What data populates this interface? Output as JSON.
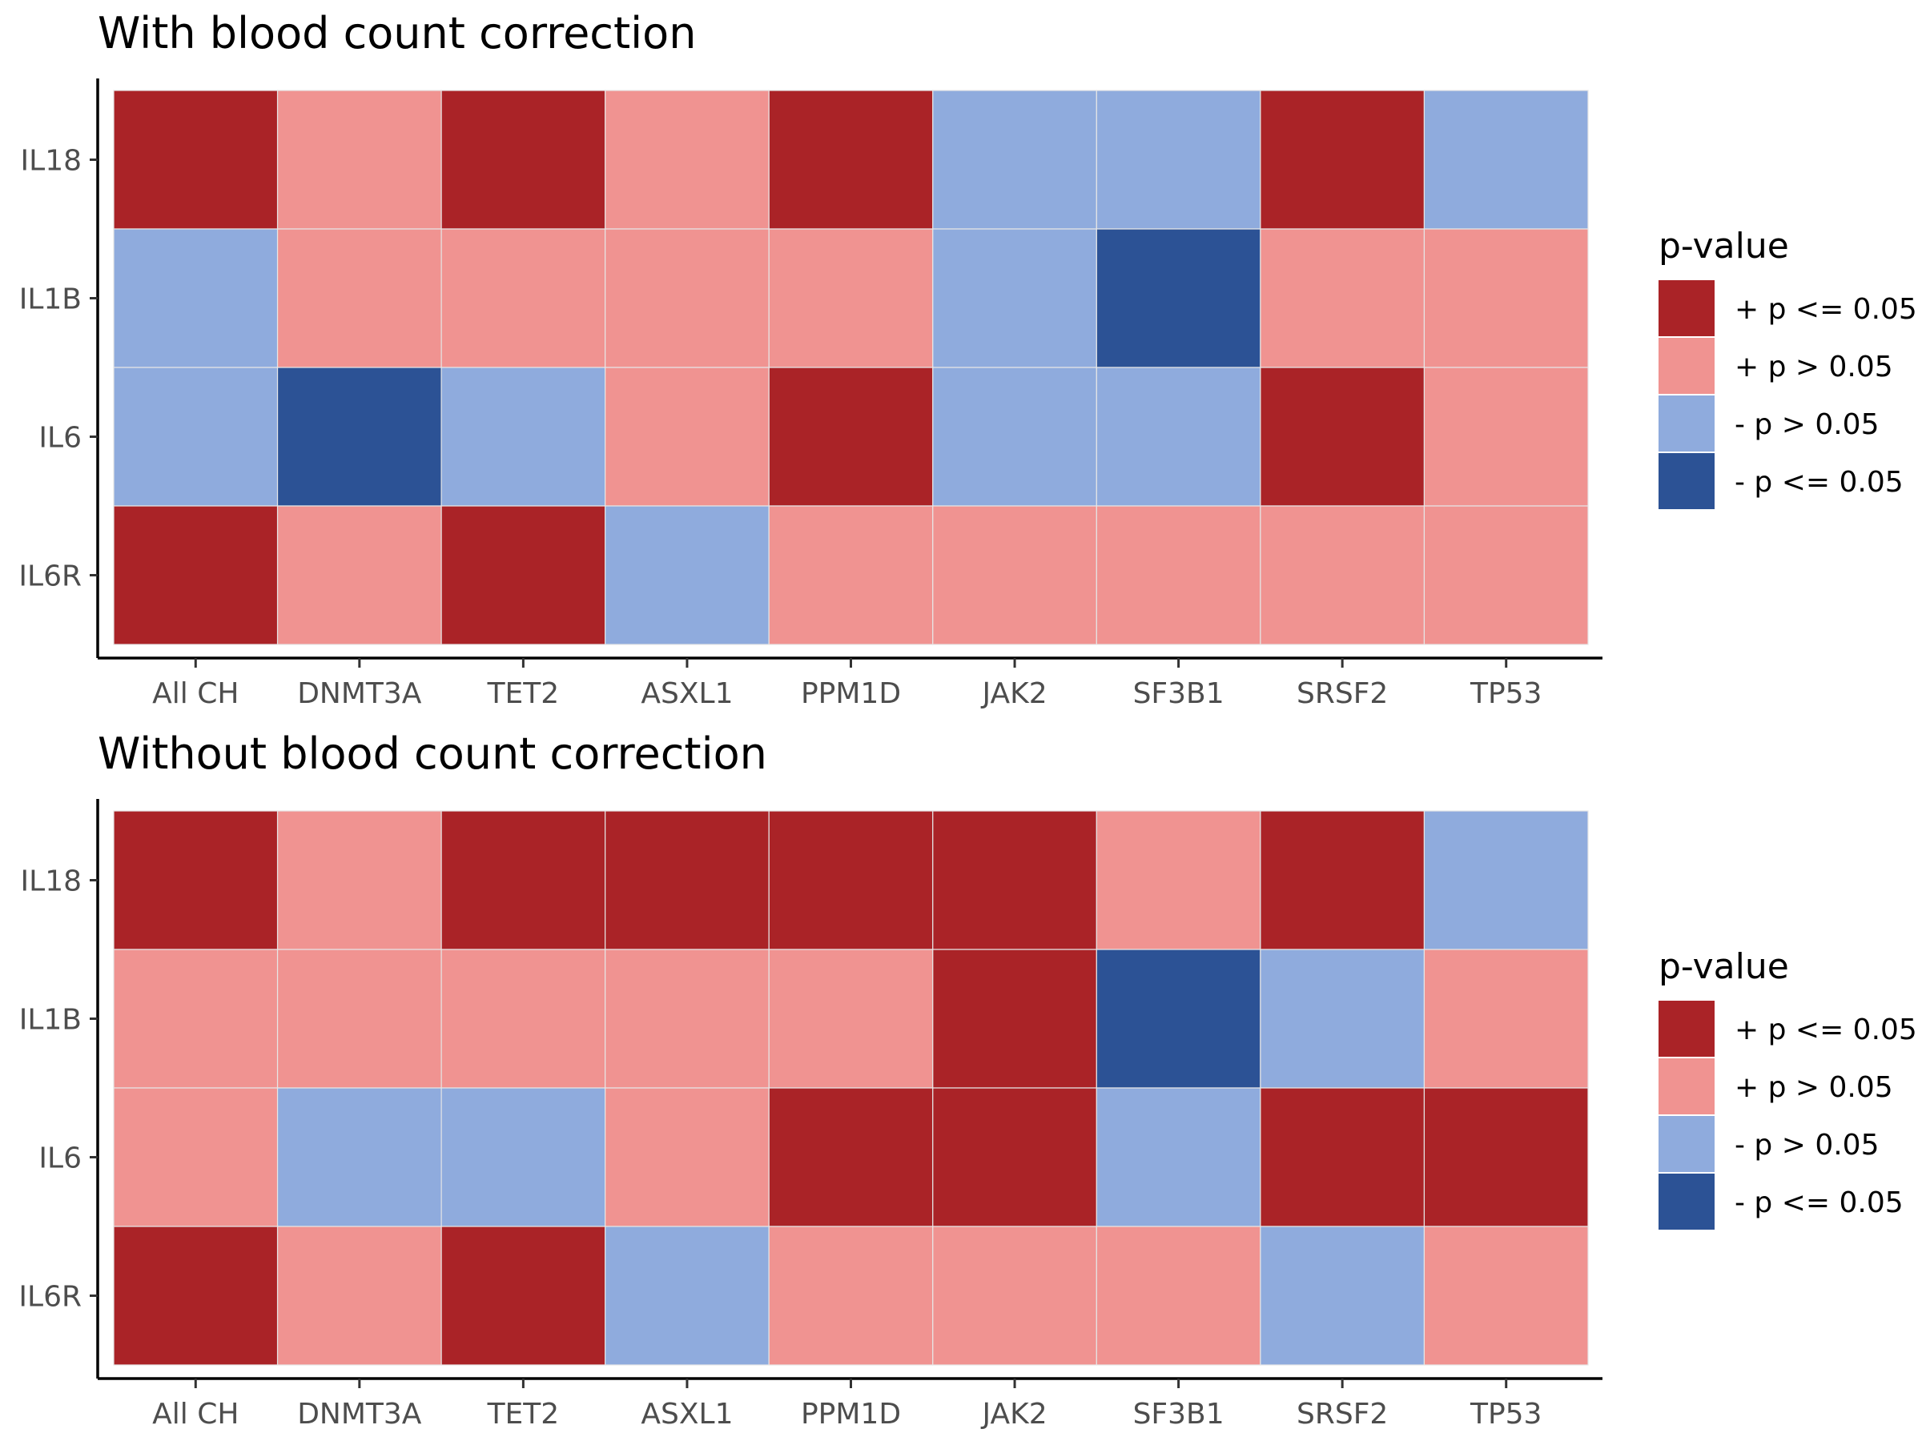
{
  "chart_data": [
    {
      "type": "heatmap",
      "title": "With blood count correction",
      "x_categories": [
        "All CH",
        "DNMT3A",
        "TET2",
        "ASXL1",
        "PPM1D",
        "JAK2",
        "SF3B1",
        "SRSF2",
        "TP53"
      ],
      "y_categories": [
        "IL18",
        "IL1B",
        "IL6",
        "IL6R"
      ],
      "values": [
        [
          "+ p <= 0.05",
          "+ p > 0.05",
          "+ p <= 0.05",
          "+ p > 0.05",
          "+ p <= 0.05",
          "- p > 0.05",
          "- p > 0.05",
          "+ p <= 0.05",
          "- p > 0.05"
        ],
        [
          "- p > 0.05",
          "+ p > 0.05",
          "+ p > 0.05",
          "+ p > 0.05",
          "+ p > 0.05",
          "- p > 0.05",
          "- p <= 0.05",
          "+ p > 0.05",
          "+ p > 0.05"
        ],
        [
          "- p > 0.05",
          "- p <= 0.05",
          "- p > 0.05",
          "+ p > 0.05",
          "+ p <= 0.05",
          "- p > 0.05",
          "- p > 0.05",
          "+ p <= 0.05",
          "+ p > 0.05"
        ],
        [
          "+ p <= 0.05",
          "+ p > 0.05",
          "+ p <= 0.05",
          "- p > 0.05",
          "+ p > 0.05",
          "+ p > 0.05",
          "+ p > 0.05",
          "+ p > 0.05",
          "+ p > 0.05"
        ]
      ],
      "legend": {
        "title": "p-value",
        "position": "right",
        "entries": [
          {
            "label": "+ p <= 0.05",
            "color": "#aa2327"
          },
          {
            "label": "+ p > 0.05",
            "color": "#f09391"
          },
          {
            "label": "- p > 0.05",
            "color": "#8fabdd"
          },
          {
            "label": "- p <= 0.05",
            "color": "#2c5295"
          }
        ]
      },
      "grid": false
    },
    {
      "type": "heatmap",
      "title": "Without blood count correction",
      "x_categories": [
        "All CH",
        "DNMT3A",
        "TET2",
        "ASXL1",
        "PPM1D",
        "JAK2",
        "SF3B1",
        "SRSF2",
        "TP53"
      ],
      "y_categories": [
        "IL18",
        "IL1B",
        "IL6",
        "IL6R"
      ],
      "values": [
        [
          "+ p <= 0.05",
          "+ p > 0.05",
          "+ p <= 0.05",
          "+ p <= 0.05",
          "+ p <= 0.05",
          "+ p <= 0.05",
          "+ p > 0.05",
          "+ p <= 0.05",
          "- p > 0.05"
        ],
        [
          "+ p > 0.05",
          "+ p > 0.05",
          "+ p > 0.05",
          "+ p > 0.05",
          "+ p > 0.05",
          "+ p <= 0.05",
          "- p <= 0.05",
          "- p > 0.05",
          "+ p > 0.05"
        ],
        [
          "+ p > 0.05",
          "- p > 0.05",
          "- p > 0.05",
          "+ p > 0.05",
          "+ p <= 0.05",
          "+ p <= 0.05",
          "- p > 0.05",
          "+ p <= 0.05",
          "+ p <= 0.05"
        ],
        [
          "+ p <= 0.05",
          "+ p > 0.05",
          "+ p <= 0.05",
          "- p > 0.05",
          "+ p > 0.05",
          "+ p > 0.05",
          "+ p > 0.05",
          "- p > 0.05",
          "+ p > 0.05"
        ]
      ],
      "legend": {
        "title": "p-value",
        "position": "right",
        "entries": [
          {
            "label": "+ p <= 0.05",
            "color": "#aa2327"
          },
          {
            "label": "+ p > 0.05",
            "color": "#f09391"
          },
          {
            "label": "- p > 0.05",
            "color": "#8fabdd"
          },
          {
            "label": "- p <= 0.05",
            "color": "#2c5295"
          }
        ]
      },
      "grid": false
    }
  ]
}
